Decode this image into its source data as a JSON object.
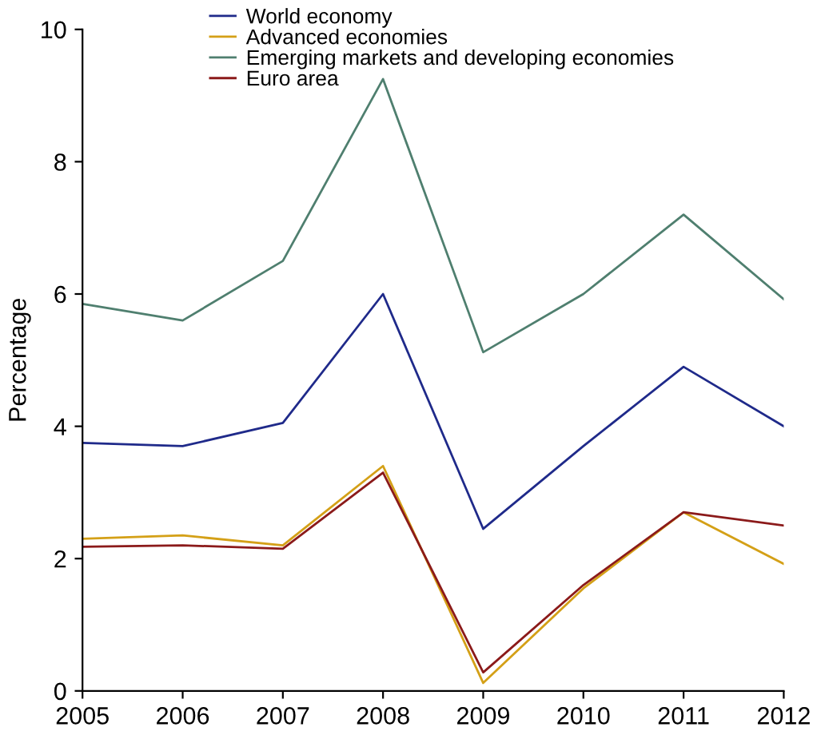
{
  "chart_data": {
    "type": "line",
    "ylabel": "Percentage",
    "x": [
      2005,
      2006,
      2007,
      2008,
      2009,
      2010,
      2011,
      2012
    ],
    "xlim": [
      2005,
      2012
    ],
    "xticks": [
      2005,
      2006,
      2007,
      2008,
      2009,
      2010,
      2011,
      2012
    ],
    "ylim": [
      0,
      10
    ],
    "yticks": [
      0,
      2,
      4,
      6,
      8,
      10
    ],
    "grid": false,
    "legend": "top left",
    "marker": "none",
    "line_style": "solid",
    "series": [
      {
        "name": "World economy",
        "color": "#1f2a8a",
        "values": [
          3.75,
          3.7,
          4.05,
          6.0,
          2.45,
          3.7,
          4.9,
          4.0
        ]
      },
      {
        "name": "Advanced economies",
        "color": "#d4a017",
        "values": [
          2.3,
          2.35,
          2.2,
          3.4,
          0.12,
          1.55,
          2.7,
          1.92
        ]
      },
      {
        "name": "Emerging markets and developing economies",
        "color": "#4f7f6f",
        "values": [
          5.85,
          5.6,
          6.5,
          9.25,
          5.12,
          6.0,
          7.2,
          5.92
        ]
      },
      {
        "name": "Euro area",
        "color": "#8b1a1a",
        "values": [
          2.18,
          2.2,
          2.15,
          3.3,
          0.28,
          1.6,
          2.7,
          2.5
        ]
      }
    ]
  }
}
